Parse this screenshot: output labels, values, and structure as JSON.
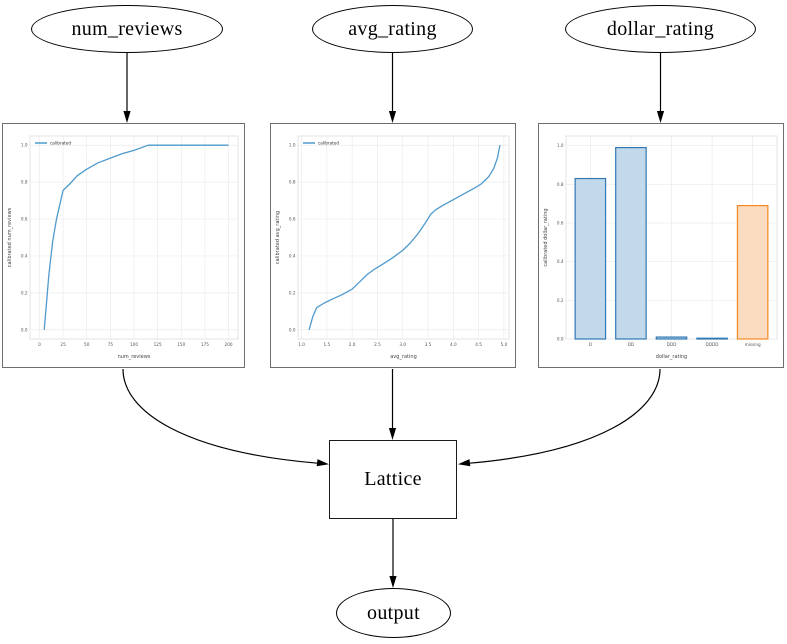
{
  "diagram": {
    "nodes": {
      "num_reviews": {
        "label": "num_reviews"
      },
      "avg_rating": {
        "label": "avg_rating"
      },
      "dollar_rating": {
        "label": "dollar_rating"
      },
      "lattice": {
        "label": "Lattice"
      },
      "output": {
        "label": "output"
      }
    }
  },
  "colors": {
    "line_blue": "#4f9acd",
    "bar_blue_fill": "#c2d8eb",
    "bar_blue_stroke": "#3178b5",
    "bar_orange_fill": "#fcdcc0",
    "bar_orange_stroke": "#f5871f",
    "grid": "#ebebeb",
    "plot_border": "#dcdcdc",
    "tick_text": "#555555",
    "axis_label_text": "#444444",
    "edge_color": "#000000"
  },
  "chart_data": [
    {
      "name": "calibrator-num_reviews",
      "type": "line",
      "title": "",
      "xlabel": "num_reviews",
      "ylabel": "calibrated num_reviews",
      "legend_position": "upper left",
      "grid": true,
      "xlim": [
        -10,
        210
      ],
      "ylim": [
        -0.05,
        1.05
      ],
      "xticks": [
        {
          "v": 0,
          "label": "0"
        },
        {
          "v": 25,
          "label": "25"
        },
        {
          "v": 50,
          "label": "50"
        },
        {
          "v": 75,
          "label": "75"
        },
        {
          "v": 100,
          "label": "100"
        },
        {
          "v": 125,
          "label": "125"
        },
        {
          "v": 150,
          "label": "150"
        },
        {
          "v": 175,
          "label": "175"
        },
        {
          "v": 200,
          "label": "200"
        }
      ],
      "yticks": [
        {
          "v": 0.0,
          "label": "0.0"
        },
        {
          "v": 0.2,
          "label": "0.2"
        },
        {
          "v": 0.4,
          "label": "0.4"
        },
        {
          "v": 0.6,
          "label": "0.6"
        },
        {
          "v": 0.8,
          "label": "0.8"
        },
        {
          "v": 1.0,
          "label": "1.0"
        }
      ],
      "series": [
        {
          "name": "calibrated",
          "color": "#4f9acd",
          "points": [
            [
              5,
              0.0
            ],
            [
              7,
              0.12
            ],
            [
              10,
              0.3
            ],
            [
              14,
              0.48
            ],
            [
              18,
              0.6
            ],
            [
              25,
              0.755
            ],
            [
              32,
              0.79
            ],
            [
              40,
              0.835
            ],
            [
              50,
              0.87
            ],
            [
              62,
              0.905
            ],
            [
              75,
              0.93
            ],
            [
              88,
              0.955
            ],
            [
              100,
              0.972
            ],
            [
              115,
              1.0
            ],
            [
              200,
              1.0
            ]
          ]
        }
      ]
    },
    {
      "name": "calibrator-avg_rating",
      "type": "line",
      "title": "",
      "xlabel": "avg_rating",
      "ylabel": "calibrated avg_rating",
      "legend_position": "upper left",
      "grid": true,
      "xlim": [
        0.93,
        5.1
      ],
      "ylim": [
        -0.05,
        1.05
      ],
      "xticks": [
        {
          "v": 1.0,
          "label": "1.0"
        },
        {
          "v": 1.5,
          "label": "1.5"
        },
        {
          "v": 2.0,
          "label": "2.0"
        },
        {
          "v": 2.5,
          "label": "2.5"
        },
        {
          "v": 3.0,
          "label": "3.0"
        },
        {
          "v": 3.5,
          "label": "3.5"
        },
        {
          "v": 4.0,
          "label": "4.0"
        },
        {
          "v": 4.5,
          "label": "4.5"
        },
        {
          "v": 5.0,
          "label": "5.0"
        }
      ],
      "yticks": [
        {
          "v": 0.0,
          "label": "0.0"
        },
        {
          "v": 0.2,
          "label": "0.2"
        },
        {
          "v": 0.4,
          "label": "0.4"
        },
        {
          "v": 0.6,
          "label": "0.6"
        },
        {
          "v": 0.8,
          "label": "0.8"
        },
        {
          "v": 1.0,
          "label": "1.0"
        }
      ],
      "series": [
        {
          "name": "calibrated",
          "color": "#4f9acd",
          "points": [
            [
              1.15,
              0.0
            ],
            [
              1.22,
              0.07
            ],
            [
              1.3,
              0.12
            ],
            [
              1.45,
              0.145
            ],
            [
              1.6,
              0.165
            ],
            [
              1.8,
              0.19
            ],
            [
              2.0,
              0.22
            ],
            [
              2.15,
              0.26
            ],
            [
              2.3,
              0.3
            ],
            [
              2.45,
              0.33
            ],
            [
              2.6,
              0.355
            ],
            [
              2.8,
              0.39
            ],
            [
              3.0,
              0.43
            ],
            [
              3.15,
              0.47
            ],
            [
              3.3,
              0.52
            ],
            [
              3.45,
              0.58
            ],
            [
              3.55,
              0.625
            ],
            [
              3.65,
              0.65
            ],
            [
              3.8,
              0.675
            ],
            [
              4.0,
              0.705
            ],
            [
              4.2,
              0.735
            ],
            [
              4.4,
              0.765
            ],
            [
              4.55,
              0.79
            ],
            [
              4.7,
              0.83
            ],
            [
              4.8,
              0.875
            ],
            [
              4.87,
              0.93
            ],
            [
              4.92,
              1.0
            ]
          ]
        }
      ]
    },
    {
      "name": "calibrator-dollar_rating",
      "type": "bar",
      "title": "",
      "xlabel": "dollar_rating",
      "ylabel": "calibrated dollar_rating",
      "grid": true,
      "ylim": [
        0,
        1.05
      ],
      "categories": [
        "D",
        "DD",
        "DDD",
        "DDDD",
        "missing"
      ],
      "values": [
        0.83,
        0.99,
        0.01,
        0.004,
        0.69
      ],
      "bar_fill": [
        "#c2d8eb",
        "#c2d8eb",
        "#c2d8eb",
        "#c2d8eb",
        "#fcdcc0"
      ],
      "bar_stroke": [
        "#3178b5",
        "#3178b5",
        "#3178b5",
        "#3178b5",
        "#f5871f"
      ],
      "yticks": [
        {
          "v": 0.0,
          "label": "0.0"
        },
        {
          "v": 0.2,
          "label": "0.2"
        },
        {
          "v": 0.4,
          "label": "0.4"
        },
        {
          "v": 0.6,
          "label": "0.6"
        },
        {
          "v": 0.8,
          "label": "0.8"
        },
        {
          "v": 1.0,
          "label": "1.0"
        }
      ]
    }
  ]
}
